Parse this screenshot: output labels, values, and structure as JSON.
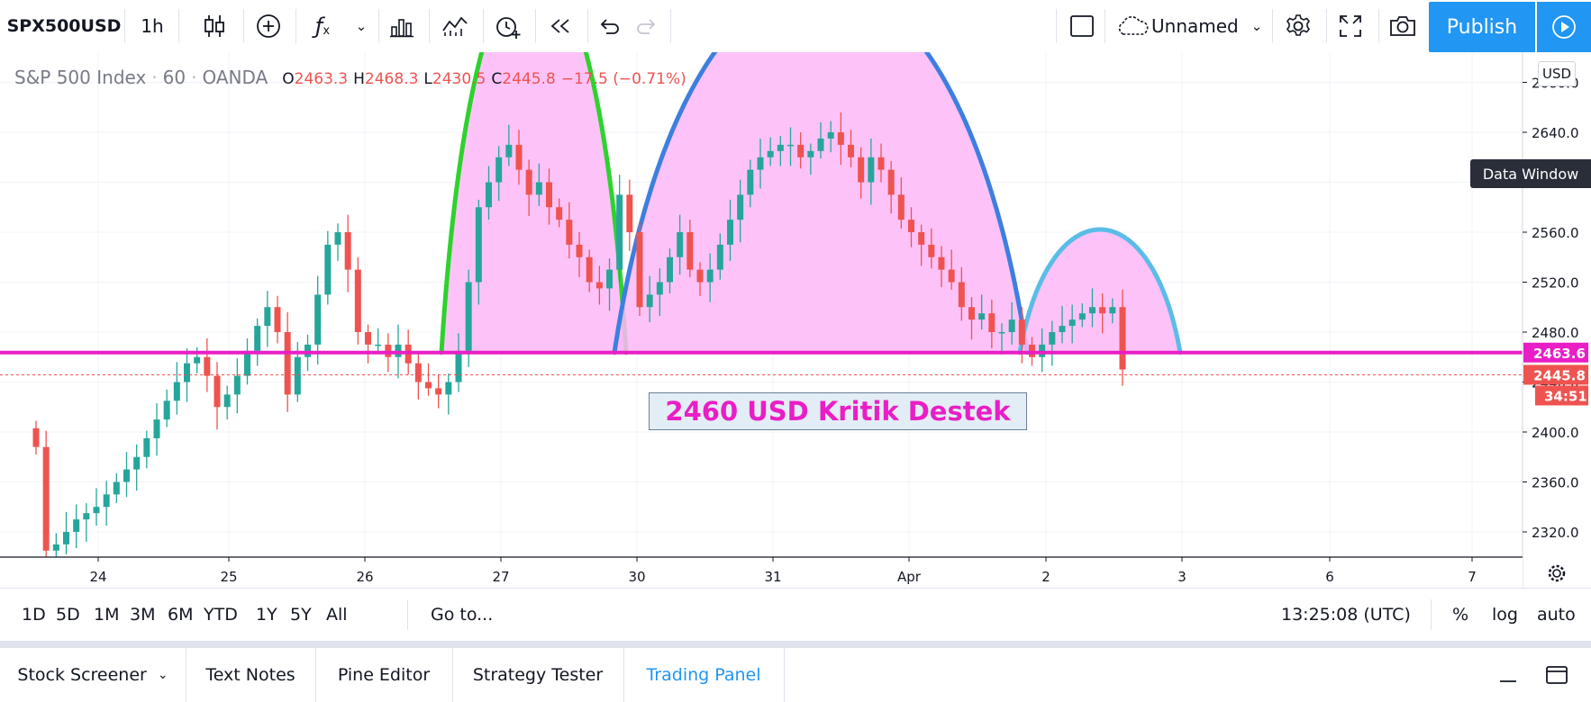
{
  "toolbar": {
    "symbol": "SPX500USD",
    "interval": "1h",
    "layout_name": "Unnamed",
    "publish_label": "Publish"
  },
  "legend": {
    "name": "S&P 500 Index",
    "resolution": "60",
    "exchange": "OANDA",
    "o_label": "O",
    "o_value": "2463.3",
    "h_label": "H",
    "h_value": "2468.3",
    "l_label": "L",
    "l_value": "2430.5",
    "c_label": "C",
    "c_value": "2445.8",
    "change": "−17.5 (−0.71%)"
  },
  "price_axis": {
    "currency": "USD",
    "ticks": [
      "2680.0",
      "2640.0",
      "2600.0",
      "2560.0",
      "2520.0",
      "2480.0",
      "2440.0",
      "2400.0",
      "2360.0",
      "2320.0"
    ],
    "support_label": "2463.6",
    "last_price_label": "2445.8",
    "countdown": "34:51"
  },
  "data_window_label": "Data Window",
  "time_axis": {
    "ticks": [
      "24",
      "25",
      "26",
      "27",
      "30",
      "31",
      "Apr",
      "2",
      "3",
      "6",
      "7"
    ]
  },
  "annotation": {
    "text": "2460 USD Kritik Destek",
    "colors": {
      "text": "#e91ec6",
      "bg": "#e3edf5",
      "border": "#6b7f95"
    }
  },
  "colors": {
    "up": "#26a69a",
    "down": "#ef5350",
    "support_line": "#e91ec6",
    "arc_fill": "#fdb9f7",
    "arc1": "#2ed22e",
    "arc2": "#3d7fe0",
    "arc3": "#5bbce8"
  },
  "range_buttons": [
    "1D",
    "5D",
    "1M",
    "3M",
    "6M",
    "YTD",
    "1Y",
    "5Y",
    "All"
  ],
  "goto_label": "Go to...",
  "clock": "13:25:08 (UTC)",
  "scale_buttons": [
    "%",
    "log",
    "auto"
  ],
  "bottom_tabs": [
    "Stock Screener",
    "Text Notes",
    "Pine Editor",
    "Strategy Tester",
    "Trading Panel"
  ],
  "chart_data": {
    "type": "candlestick",
    "y_range": [
      2296,
      2702
    ],
    "support_level": 2463.6,
    "last_price": 2445.8,
    "candles_close": [
      2388,
      2305,
      2310,
      2320,
      2330,
      2335,
      2340,
      2350,
      2360,
      2370,
      2380,
      2395,
      2410,
      2425,
      2440,
      2455,
      2460,
      2445,
      2420,
      2430,
      2445,
      2465,
      2485,
      2500,
      2480,
      2430,
      2460,
      2470,
      2510,
      2550,
      2560,
      2530,
      2480,
      2470,
      2470,
      2460,
      2470,
      2455,
      2440,
      2435,
      2430,
      2440,
      2465,
      2520,
      2580,
      2600,
      2620,
      2630,
      2610,
      2590,
      2600,
      2580,
      2570,
      2550,
      2540,
      2520,
      2515,
      2530,
      2590,
      2560,
      2500,
      2510,
      2520,
      2540,
      2560,
      2530,
      2520,
      2530,
      2550,
      2570,
      2590,
      2610,
      2620,
      2625,
      2630,
      2630,
      2620,
      2625,
      2635,
      2640,
      2630,
      2620,
      2600,
      2620,
      2610,
      2590,
      2570,
      2560,
      2550,
      2540,
      2530,
      2520,
      2500,
      2490,
      2495,
      2480,
      2480,
      2490,
      2470,
      2460,
      2470,
      2480,
      2485,
      2490,
      2495,
      2500,
      2495,
      2500,
      2450
    ]
  }
}
